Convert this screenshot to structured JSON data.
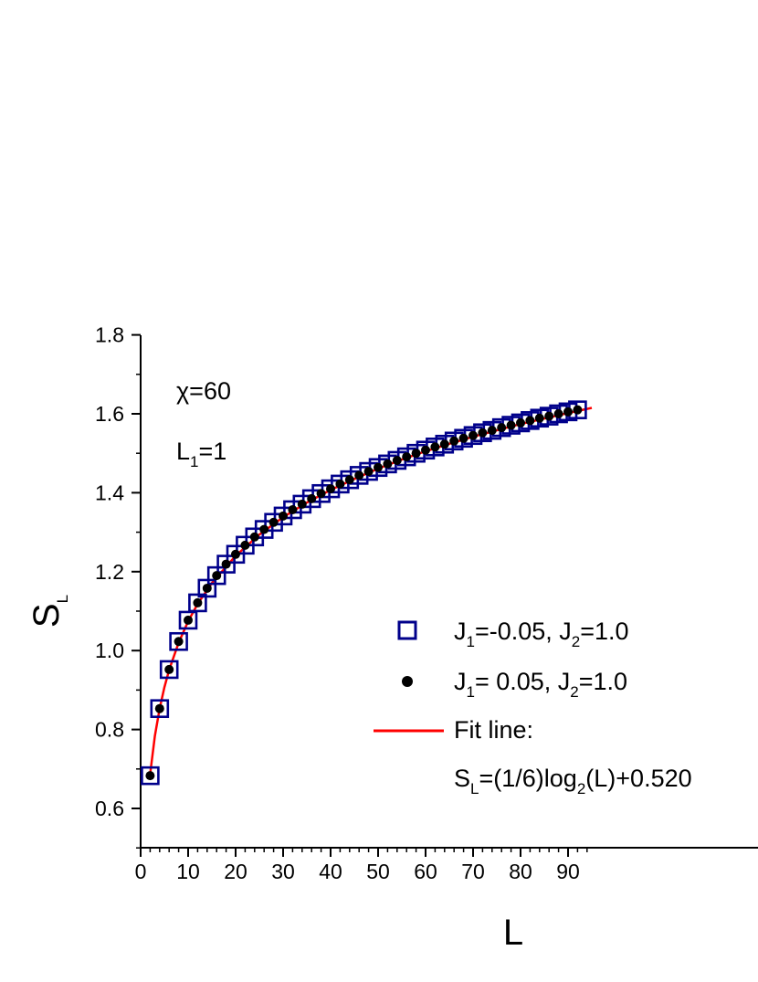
{
  "chart_data": {
    "type": "scatter",
    "title": "",
    "xlabel": "L",
    "ylabel": {
      "main": "S",
      "sub": "L"
    },
    "xlim": [
      0,
      95
    ],
    "ylim": [
      0.5,
      1.8
    ],
    "x_ticks": [
      0,
      10,
      20,
      30,
      40,
      50,
      60,
      70,
      80,
      90
    ],
    "x_tick_labels": [
      "0",
      "10",
      "20",
      "30",
      "40",
      "50",
      "60",
      "70",
      "80",
      "90"
    ],
    "y_ticks": [
      0.6,
      0.8,
      1.0,
      1.2,
      1.4,
      1.6,
      1.8
    ],
    "y_tick_labels": [
      "0.6",
      "0.8",
      "1.0",
      "1.2",
      "1.4",
      "1.6",
      "1.8"
    ],
    "grid": false,
    "legend_position": "center-right",
    "annotations": [
      {
        "main": "χ=60",
        "sub": ""
      },
      {
        "main": "L",
        "sub": "1",
        "suffix": "=1"
      }
    ],
    "series": [
      {
        "label_parts": [
          "J",
          "1",
          "=-0.05, J",
          "2",
          "=1.0"
        ],
        "marker": "open-square",
        "color": "#00008b",
        "x": [
          2,
          4,
          6,
          8,
          10,
          12,
          14,
          16,
          18,
          20,
          22,
          24,
          26,
          28,
          30,
          32,
          34,
          36,
          38,
          40,
          42,
          44,
          46,
          48,
          50,
          52,
          54,
          56,
          58,
          60,
          62,
          64,
          66,
          68,
          70,
          72,
          74,
          76,
          78,
          80,
          82,
          84,
          86,
          88,
          90,
          92
        ],
        "y": [
          0.683,
          0.853,
          0.952,
          1.023,
          1.077,
          1.121,
          1.158,
          1.19,
          1.219,
          1.244,
          1.267,
          1.288,
          1.307,
          1.325,
          1.341,
          1.357,
          1.371,
          1.385,
          1.398,
          1.41,
          1.422,
          1.433,
          1.444,
          1.454,
          1.464,
          1.473,
          1.482,
          1.491,
          1.5,
          1.508,
          1.516,
          1.523,
          1.531,
          1.538,
          1.545,
          1.552,
          1.558,
          1.565,
          1.571,
          1.577,
          1.583,
          1.589,
          1.594,
          1.6,
          1.605,
          1.61
        ]
      },
      {
        "label_parts": [
          "J",
          "1",
          "= 0.05, J",
          "2",
          "=1.0"
        ],
        "marker": "filled-circle",
        "color": "#000000",
        "x": [
          2,
          4,
          6,
          8,
          10,
          12,
          14,
          16,
          18,
          20,
          22,
          24,
          26,
          28,
          30,
          32,
          34,
          36,
          38,
          40,
          42,
          44,
          46,
          48,
          50,
          52,
          54,
          56,
          58,
          60,
          62,
          64,
          66,
          68,
          70,
          72,
          74,
          76,
          78,
          80,
          82,
          84,
          86,
          88,
          90,
          92
        ],
        "y": [
          0.683,
          0.853,
          0.952,
          1.023,
          1.077,
          1.121,
          1.158,
          1.19,
          1.219,
          1.244,
          1.267,
          1.288,
          1.307,
          1.325,
          1.341,
          1.357,
          1.371,
          1.385,
          1.398,
          1.41,
          1.422,
          1.433,
          1.444,
          1.454,
          1.464,
          1.473,
          1.482,
          1.491,
          1.5,
          1.508,
          1.516,
          1.523,
          1.531,
          1.538,
          1.545,
          1.552,
          1.558,
          1.565,
          1.571,
          1.577,
          1.583,
          1.589,
          1.594,
          1.6,
          1.605,
          1.61
        ]
      },
      {
        "label_main": "Fit line:",
        "label_parts": [
          "S",
          "L",
          "=(1/6)log",
          "2",
          "(L)+0.520"
        ],
        "marker": "line",
        "color": "#ff0000",
        "x": [
          2,
          3,
          4,
          5,
          6,
          8,
          10,
          12,
          15,
          20,
          25,
          30,
          35,
          40,
          45,
          50,
          55,
          60,
          65,
          70,
          75,
          80,
          85,
          90,
          95
        ],
        "y": [
          0.687,
          0.784,
          0.853,
          0.907,
          0.951,
          1.02,
          1.074,
          1.118,
          1.171,
          1.24,
          1.294,
          1.338,
          1.375,
          1.407,
          1.435,
          1.461,
          1.484,
          1.505,
          1.524,
          1.542,
          1.558,
          1.574,
          1.588,
          1.602,
          1.615
        ]
      }
    ]
  }
}
